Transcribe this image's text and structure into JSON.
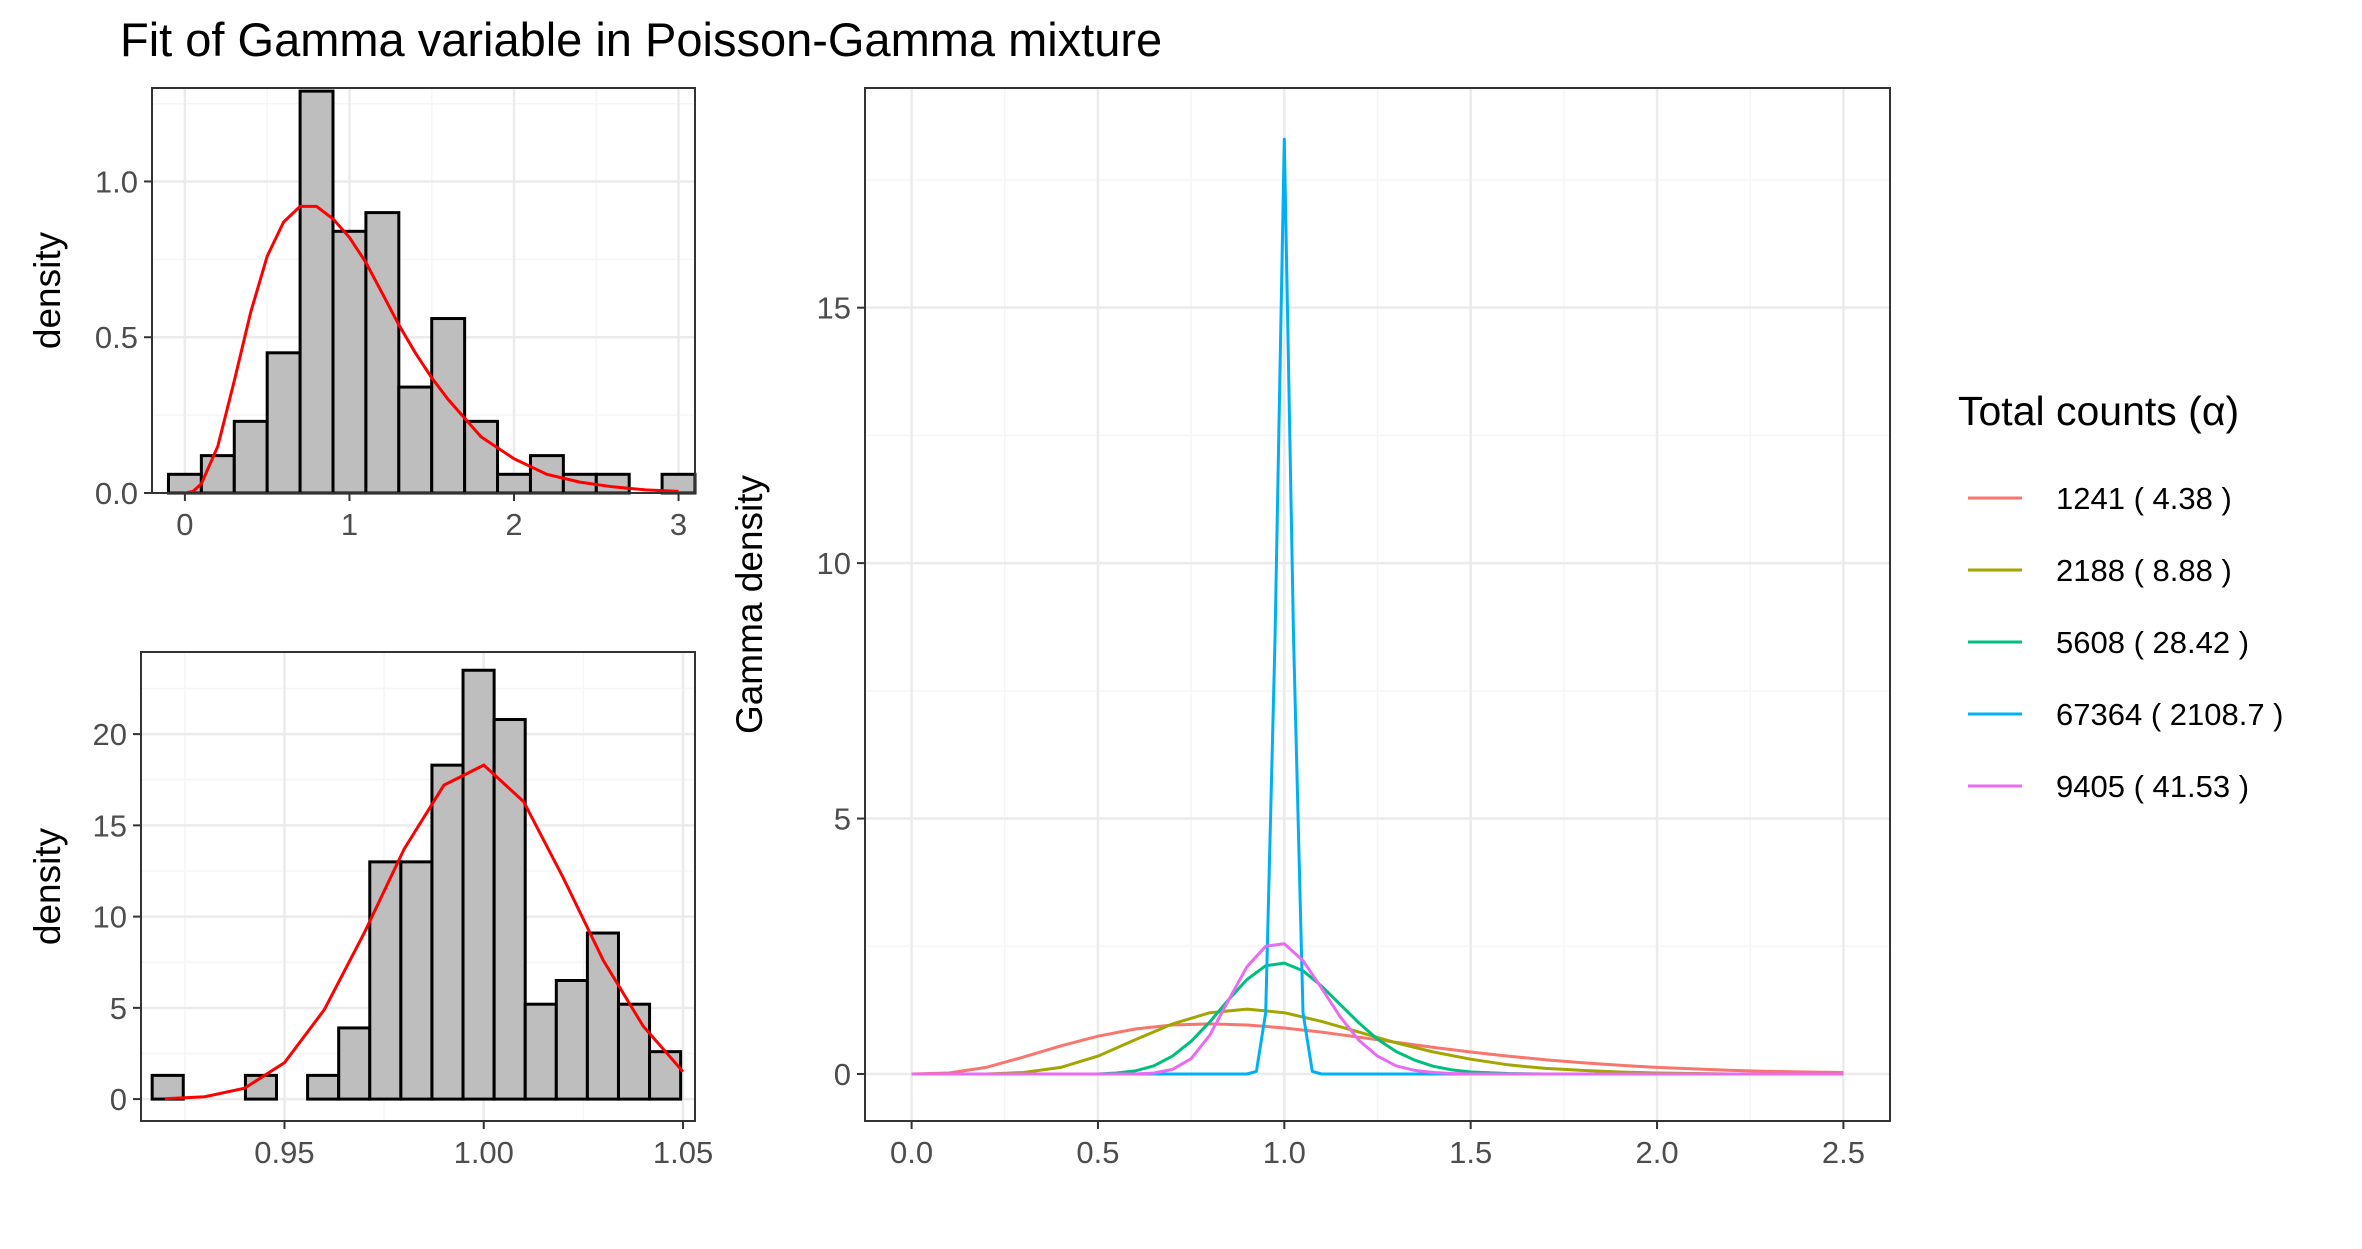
{
  "figure": {
    "title": "Fit of Gamma variable in Poisson-Gamma mixture"
  },
  "chart_data": [
    {
      "type": "bar",
      "panel": "top-left histogram",
      "xlabel": "",
      "ylabel": "density",
      "xlim": [
        -0.2,
        3.1
      ],
      "ylim": [
        0,
        1.3
      ],
      "xticks": [
        0,
        1,
        2,
        3
      ],
      "xtick_labels": [
        "0",
        "1",
        "2",
        "3"
      ],
      "yticks": [
        0,
        0.5,
        1.0
      ],
      "ytick_labels": [
        "0.0",
        "0.5",
        "1.0"
      ],
      "bin_width": 0.2,
      "bin_left_edges": [
        -0.1,
        0.1,
        0.3,
        0.5,
        0.7,
        0.9,
        1.1,
        1.3,
        1.5,
        1.7,
        1.9,
        2.1,
        2.3,
        2.5,
        2.7,
        2.9
      ],
      "values": [
        0.06,
        0.12,
        0.23,
        0.45,
        1.29,
        0.84,
        0.9,
        0.34,
        0.56,
        0.23,
        0.06,
        0.12,
        0.06,
        0.06,
        0.0,
        0.06
      ],
      "bar_fill": "#bebebe",
      "bar_stroke": "#000000",
      "fit_curve": {
        "color": "#ff0000",
        "x": [
          0.0,
          0.05,
          0.1,
          0.2,
          0.3,
          0.4,
          0.5,
          0.6,
          0.7,
          0.8,
          0.9,
          1.0,
          1.1,
          1.2,
          1.3,
          1.4,
          1.5,
          1.6,
          1.8,
          2.0,
          2.2,
          2.4,
          2.6,
          2.8,
          3.0
        ],
        "y": [
          0.0,
          0.005,
          0.03,
          0.15,
          0.36,
          0.58,
          0.76,
          0.87,
          0.92,
          0.92,
          0.88,
          0.82,
          0.74,
          0.64,
          0.54,
          0.45,
          0.37,
          0.3,
          0.18,
          0.11,
          0.06,
          0.035,
          0.02,
          0.01,
          0.005
        ]
      }
    },
    {
      "type": "bar",
      "panel": "bottom-left histogram",
      "xlabel": "",
      "ylabel": "density",
      "xlim": [
        0.914,
        1.053
      ],
      "ylim": [
        -1.2,
        24.5
      ],
      "xticks": [
        0.95,
        1.0,
        1.05
      ],
      "xtick_labels": [
        "0.95",
        "1.00",
        "1.05"
      ],
      "yticks": [
        0,
        5,
        10,
        15,
        20
      ],
      "ytick_labels": [
        "0",
        "5",
        "10",
        "15",
        "20"
      ],
      "bin_width": 0.0078,
      "bin_left_edges": [
        0.9168,
        0.9246,
        0.9324,
        0.9402,
        0.948,
        0.9558,
        0.9636,
        0.9714,
        0.9792,
        0.987,
        0.9948,
        1.0026,
        1.0104,
        1.0182,
        1.026,
        1.0338,
        1.0416
      ],
      "values": [
        1.3,
        0.0,
        0.0,
        1.3,
        0.0,
        1.3,
        3.9,
        13.0,
        13.0,
        18.3,
        23.5,
        20.8,
        5.2,
        6.5,
        9.1,
        5.2,
        2.6
      ],
      "bar_fill": "#bebebe",
      "bar_stroke": "#000000",
      "fit_curve": {
        "color": "#ff0000",
        "x": [
          0.92,
          0.93,
          0.94,
          0.95,
          0.96,
          0.97,
          0.98,
          0.99,
          1.0,
          1.01,
          1.02,
          1.03,
          1.04,
          1.05
        ],
        "y": [
          0.02,
          0.13,
          0.6,
          2.0,
          4.9,
          9.1,
          13.7,
          17.2,
          18.3,
          16.3,
          12.1,
          7.6,
          4.0,
          1.5
        ]
      }
    },
    {
      "type": "line",
      "panel": "right gamma densities",
      "xlabel": "",
      "ylabel": "Gamma density",
      "xlim": [
        -0.125,
        2.625
      ],
      "ylim": [
        -0.92,
        19.3
      ],
      "xticks": [
        0.0,
        0.5,
        1.0,
        1.5,
        2.0,
        2.5
      ],
      "xtick_labels": [
        "0.0",
        "0.5",
        "1.0",
        "1.5",
        "2.0",
        "2.5"
      ],
      "yticks": [
        0,
        5,
        10,
        15
      ],
      "ytick_labels": [
        "0",
        "5",
        "10",
        "15"
      ],
      "legend_title": "Total counts (α)",
      "legend_position": "right",
      "series": [
        {
          "name": "1241  ( 4.38 )",
          "color": "#f8766d",
          "x": [
            0.0,
            0.1,
            0.2,
            0.3,
            0.4,
            0.5,
            0.6,
            0.7,
            0.8,
            0.9,
            1.0,
            1.1,
            1.2,
            1.3,
            1.4,
            1.5,
            1.6,
            1.7,
            1.8,
            1.9,
            2.0,
            2.1,
            2.2,
            2.3,
            2.4,
            2.5
          ],
          "y": [
            0.0,
            0.02,
            0.13,
            0.33,
            0.55,
            0.74,
            0.88,
            0.96,
            0.98,
            0.96,
            0.9,
            0.82,
            0.72,
            0.62,
            0.52,
            0.43,
            0.35,
            0.28,
            0.22,
            0.17,
            0.13,
            0.1,
            0.07,
            0.05,
            0.04,
            0.03
          ]
        },
        {
          "name": "2188  ( 8.88 )",
          "color": "#a3a500",
          "x": [
            0.0,
            0.1,
            0.2,
            0.3,
            0.4,
            0.5,
            0.6,
            0.7,
            0.8,
            0.9,
            1.0,
            1.1,
            1.2,
            1.3,
            1.4,
            1.5,
            1.6,
            1.7,
            1.8,
            1.9,
            2.0,
            2.1,
            2.2,
            2.3,
            2.4,
            2.5
          ],
          "y": [
            0.0,
            0.0,
            0.0,
            0.03,
            0.13,
            0.35,
            0.67,
            0.98,
            1.2,
            1.27,
            1.2,
            1.03,
            0.82,
            0.61,
            0.43,
            0.29,
            0.18,
            0.11,
            0.07,
            0.04,
            0.02,
            0.01,
            0.0,
            0.0,
            0.0,
            0.0
          ]
        },
        {
          "name": "5608  ( 28.42 )",
          "color": "#00bf7d",
          "x": [
            0.0,
            0.5,
            0.55,
            0.6,
            0.65,
            0.7,
            0.75,
            0.8,
            0.85,
            0.9,
            0.95,
            1.0,
            1.05,
            1.1,
            1.15,
            1.2,
            1.25,
            1.3,
            1.35,
            1.4,
            1.45,
            1.5,
            1.6,
            1.7,
            2.0,
            2.5
          ],
          "y": [
            0.0,
            0.0,
            0.02,
            0.06,
            0.16,
            0.35,
            0.64,
            1.02,
            1.45,
            1.85,
            2.12,
            2.17,
            2.02,
            1.72,
            1.36,
            1.0,
            0.68,
            0.44,
            0.27,
            0.15,
            0.08,
            0.04,
            0.01,
            0.0,
            0.0,
            0.0
          ]
        },
        {
          "name": "67364  ( 2108.7 )",
          "color": "#00b0f6",
          "x": [
            0.0,
            0.9,
            0.925,
            0.95,
            0.975,
            1.0,
            1.025,
            1.05,
            1.075,
            1.1,
            2.5
          ],
          "y": [
            0.0,
            0.0,
            0.05,
            1.2,
            8.5,
            18.3,
            8.5,
            1.2,
            0.05,
            0.0,
            0.0
          ]
        },
        {
          "name": "9405  ( 41.53 )",
          "color": "#e76bf3",
          "x": [
            0.0,
            0.6,
            0.65,
            0.7,
            0.75,
            0.8,
            0.85,
            0.9,
            0.95,
            1.0,
            1.05,
            1.1,
            1.15,
            1.2,
            1.25,
            1.3,
            1.35,
            1.4,
            1.45,
            1.5,
            2.5
          ],
          "y": [
            0.0,
            0.0,
            0.02,
            0.09,
            0.3,
            0.76,
            1.44,
            2.1,
            2.5,
            2.55,
            2.22,
            1.68,
            1.12,
            0.66,
            0.35,
            0.16,
            0.07,
            0.03,
            0.01,
            0.0,
            0.0
          ]
        }
      ]
    }
  ]
}
